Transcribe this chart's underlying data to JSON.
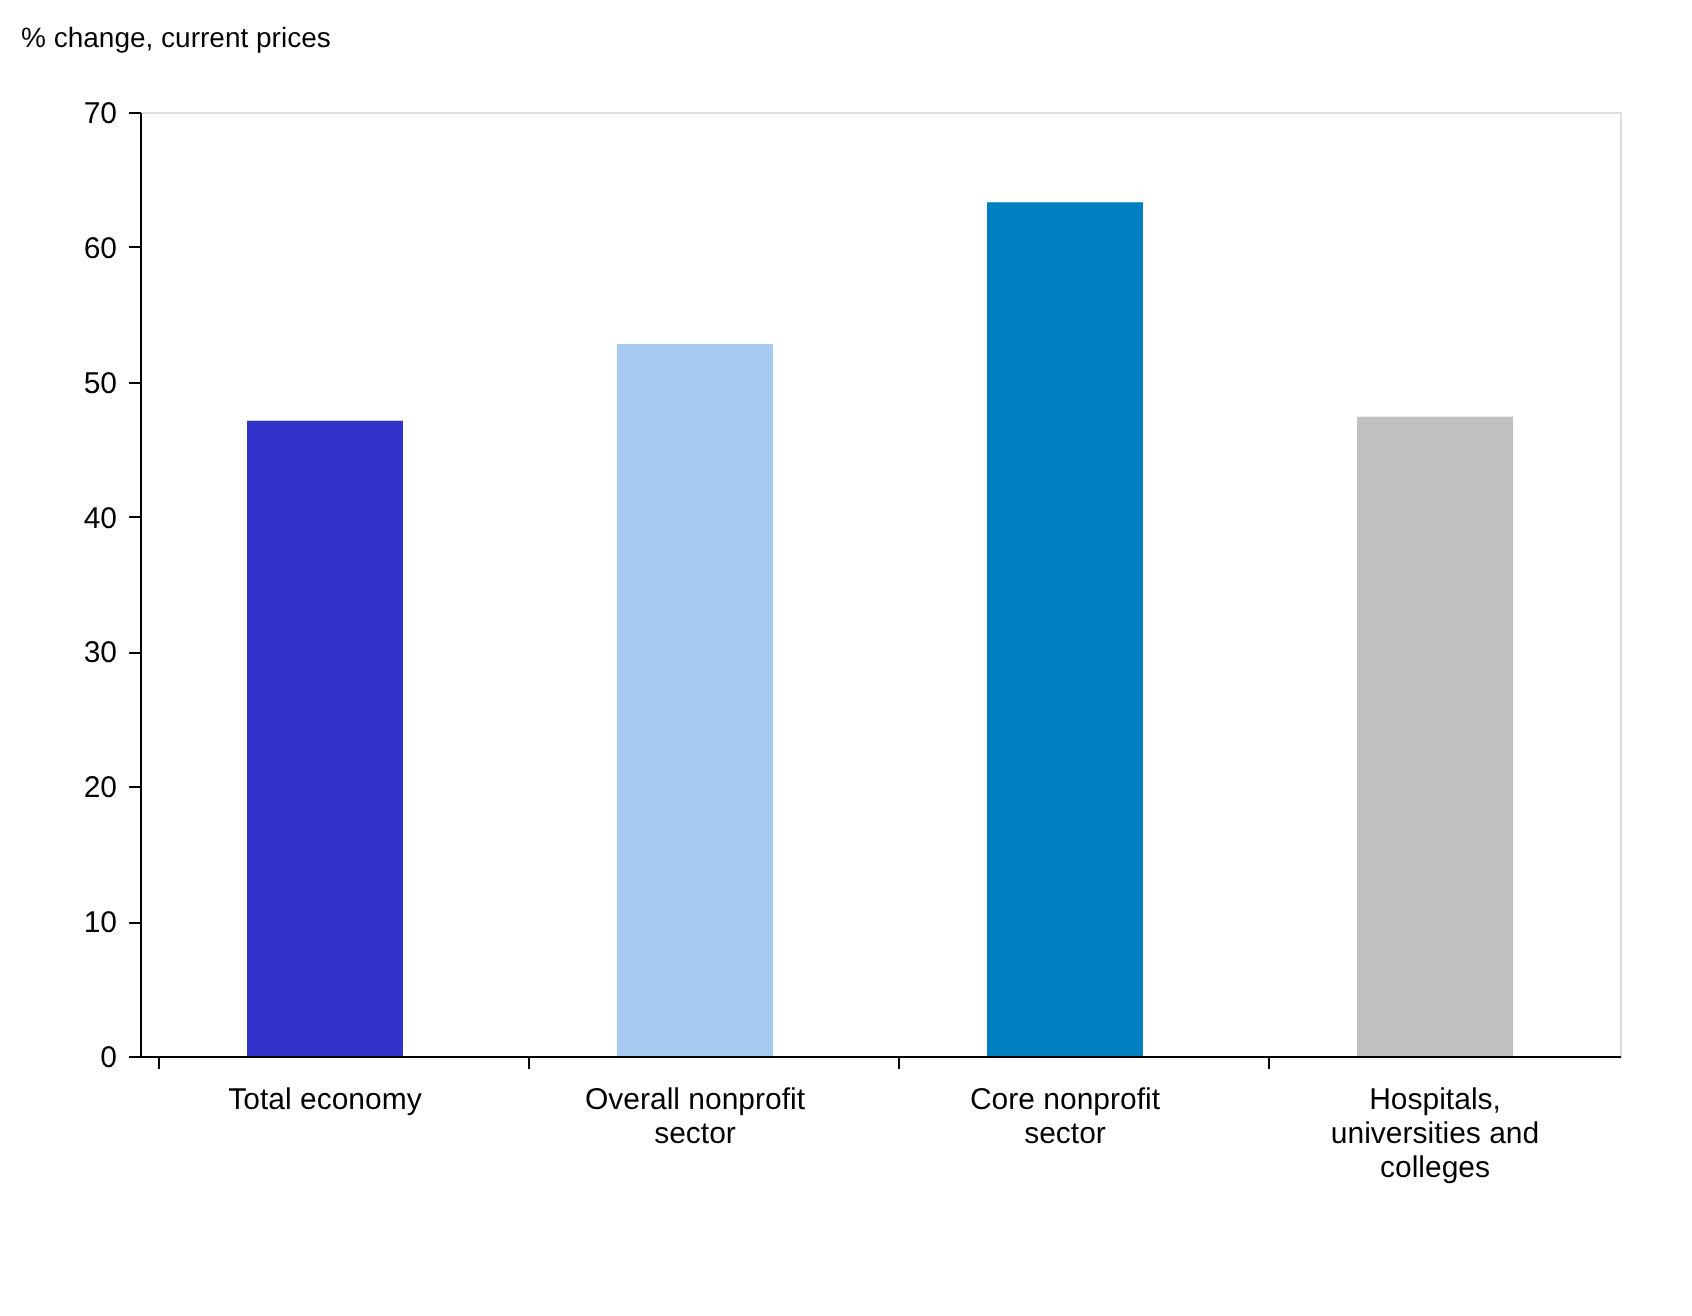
{
  "chart_data": {
    "type": "bar",
    "ylabel": "% change, current prices",
    "categories": [
      "Total economy",
      "Overall nonprofit sector",
      "Core nonprofit sector",
      "Hospitals, universities and colleges"
    ],
    "values": [
      47.1,
      52.8,
      63.3,
      47.4
    ],
    "colors": [
      "#3333cc",
      "#a6caf0",
      "#0080c0",
      "#c0c0c0"
    ],
    "ylim": [
      0,
      70
    ],
    "yticks": [
      0,
      10,
      20,
      30,
      40,
      50,
      60,
      70
    ],
    "grid": false,
    "legend": false
  }
}
